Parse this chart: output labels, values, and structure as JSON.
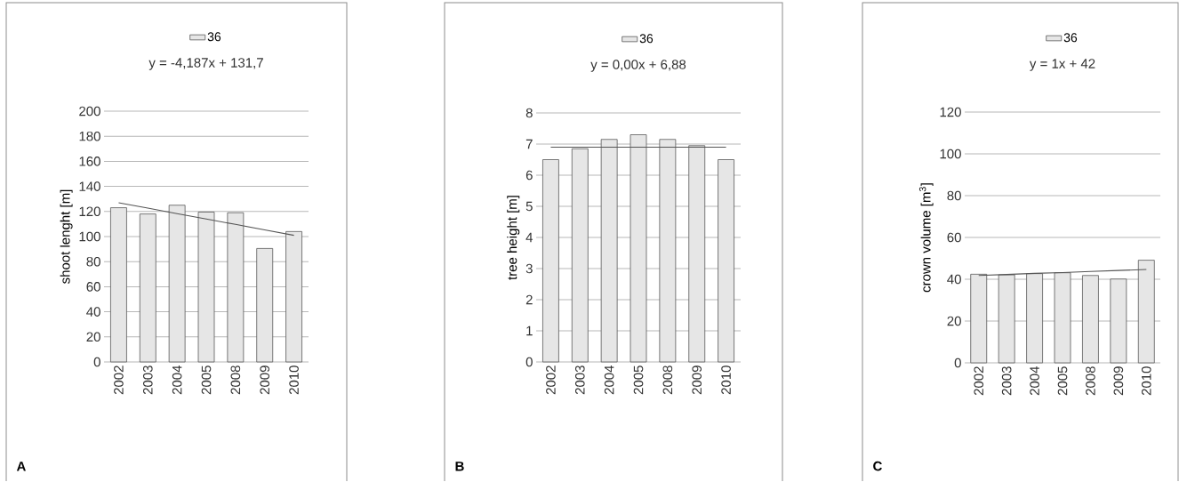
{
  "chart_data": [
    {
      "type": "bar",
      "categories": [
        "2002",
        "2003",
        "2004",
        "2005",
        "2008",
        "2009",
        "2010"
      ],
      "ylabel": "shoot lenght [m]",
      "ylim": [
        0,
        200
      ],
      "yticks": [
        0,
        20,
        40,
        60,
        80,
        100,
        120,
        140,
        160,
        180,
        200
      ],
      "grid": "y",
      "legend": "top",
      "annotations": [
        "y = -4,187x + 131,7",
        "A"
      ],
      "series": [
        {
          "name": "36",
          "color": "#e6e6e6",
          "values": [
            123,
            118,
            125,
            119.5,
            119,
            90.5,
            104
          ]
        },
        {
          "type": "line",
          "color": "#555555",
          "values": [
            127,
            122.7,
            118.3,
            114,
            109.7,
            105.3,
            101
          ]
        }
      ]
    },
    {
      "type": "bar",
      "categories": [
        "2002",
        "2003",
        "2004",
        "2005",
        "2008",
        "2009",
        "2010"
      ],
      "ylabel": "tree height [m]",
      "ylim": [
        0,
        8
      ],
      "yticks": [
        0,
        1,
        2,
        3,
        4,
        5,
        6,
        7,
        8
      ],
      "grid": "y",
      "legend": "top",
      "annotations": [
        "y = 0,00x + 6,88",
        "B"
      ],
      "series": [
        {
          "name": "36",
          "color": "#e6e6e6",
          "values": [
            6.5,
            6.85,
            7.15,
            7.3,
            7.15,
            6.95,
            6.5
          ]
        },
        {
          "type": "line",
          "color": "#555555",
          "values": [
            6.9,
            6.9,
            6.9,
            6.9,
            6.9,
            6.9,
            6.9
          ]
        }
      ]
    },
    {
      "type": "bar",
      "categories": [
        "2002",
        "2003",
        "2004",
        "2005",
        "2008",
        "2009",
        "2010"
      ],
      "ylabel": "crown volume [m$^{3}$]",
      "ylim": [
        0,
        120
      ],
      "yticks": [
        0,
        20,
        40,
        60,
        80,
        100,
        120
      ],
      "grid": "y",
      "legend": "top",
      "annotations": [
        "y = 1x + 42",
        "C"
      ],
      "series": [
        {
          "name": "36",
          "color": "#e6e6e6",
          "values": [
            42.4,
            42.1,
            42.7,
            43.1,
            41.8,
            40.1,
            49.1
          ]
        },
        {
          "type": "line",
          "color": "#555555",
          "values": [
            41.8,
            42.3,
            42.8,
            43.2,
            43.7,
            44.2,
            44.7
          ]
        }
      ]
    }
  ]
}
